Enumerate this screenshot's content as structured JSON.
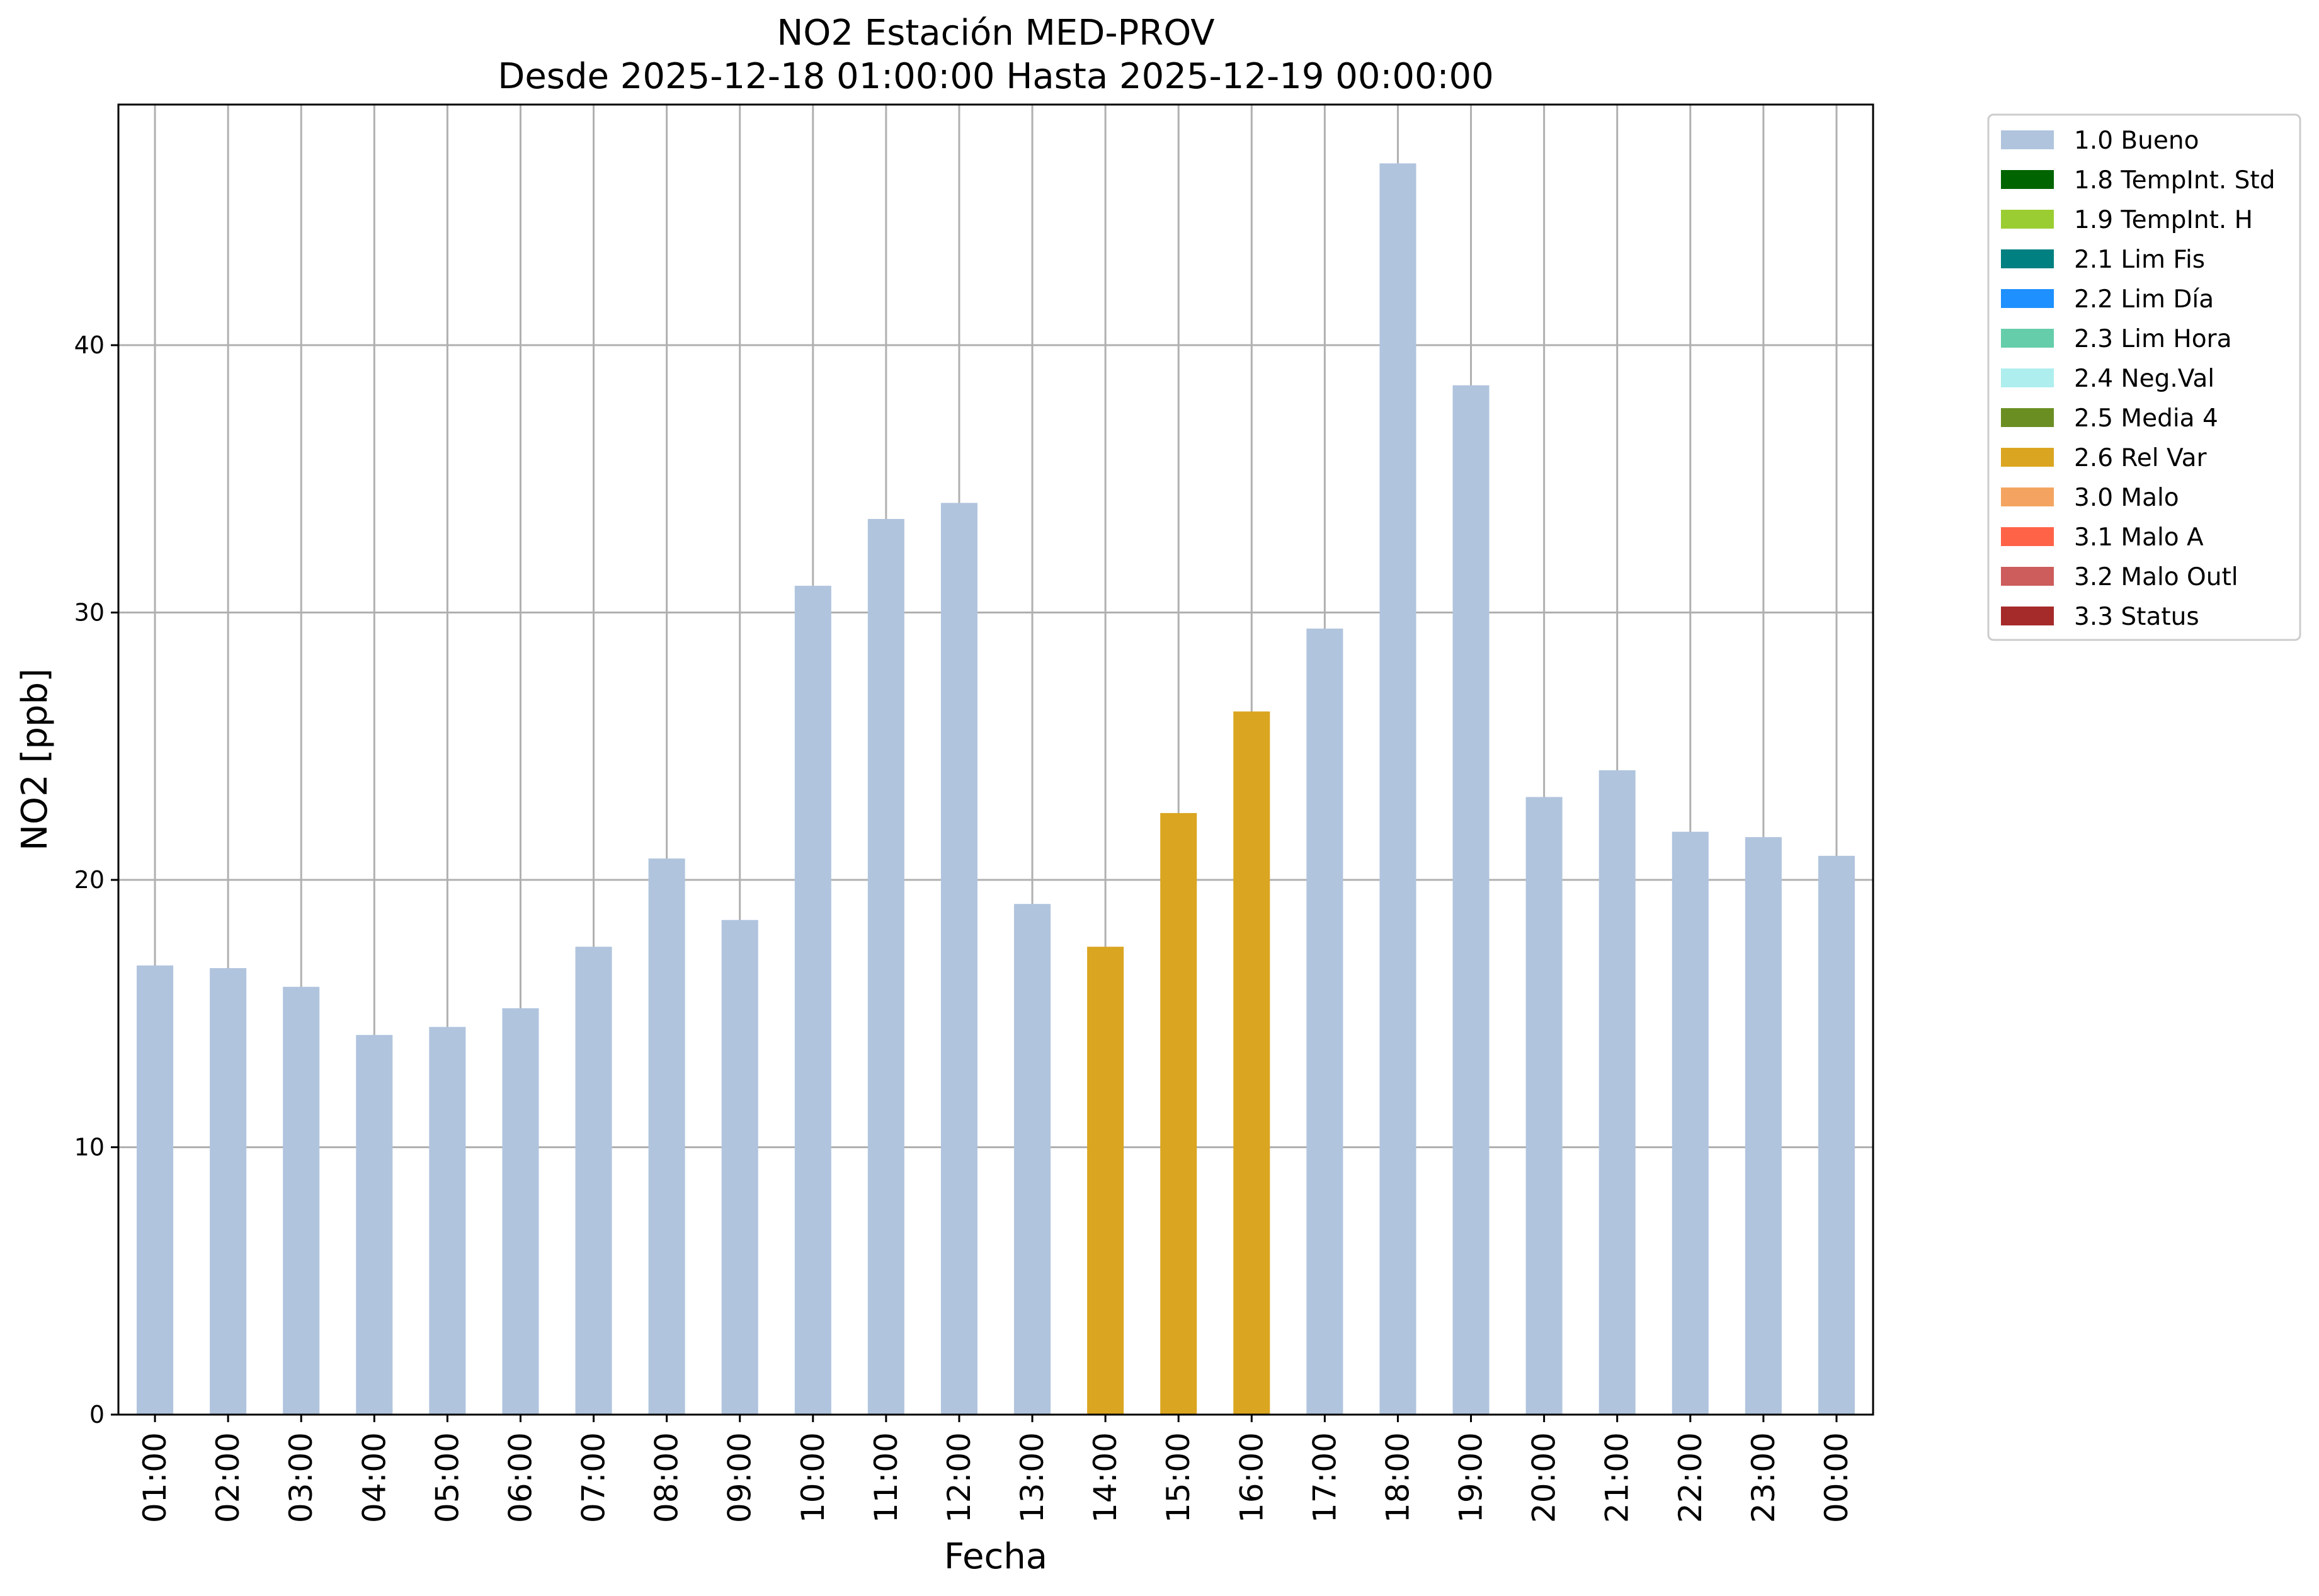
{
  "chart_data": {
    "type": "bar",
    "title": "NO2 Estación MED-PROV",
    "subtitle": "Desde 2025-12-18 01:00:00 Hasta 2025-12-19 00:00:00",
    "xlabel": "Fecha",
    "ylabel": "NO2 [ppb]",
    "ylim": [
      0,
      49
    ],
    "yticks": [
      0,
      10,
      20,
      30,
      40
    ],
    "grid": true,
    "legend_position": "outside top-right",
    "categories": [
      "01:00",
      "02:00",
      "03:00",
      "04:00",
      "05:00",
      "06:00",
      "07:00",
      "08:00",
      "09:00",
      "10:00",
      "11:00",
      "12:00",
      "13:00",
      "14:00",
      "15:00",
      "16:00",
      "17:00",
      "18:00",
      "19:00",
      "20:00",
      "21:00",
      "22:00",
      "23:00",
      "00:00"
    ],
    "values": [
      16.8,
      16.7,
      16.0,
      14.2,
      14.5,
      15.2,
      17.5,
      20.8,
      18.5,
      31.0,
      33.5,
      34.1,
      19.1,
      17.5,
      22.5,
      26.3,
      29.4,
      46.8,
      38.5,
      23.1,
      24.1,
      21.8,
      21.6,
      20.9
    ],
    "flags": [
      "1.0 Bueno",
      "1.0 Bueno",
      "1.0 Bueno",
      "1.0 Bueno",
      "1.0 Bueno",
      "1.0 Bueno",
      "1.0 Bueno",
      "1.0 Bueno",
      "1.0 Bueno",
      "1.0 Bueno",
      "1.0 Bueno",
      "1.0 Bueno",
      "1.0 Bueno",
      "2.6 Rel Var",
      "2.6 Rel Var",
      "2.6 Rel Var",
      "1.0 Bueno",
      "1.0 Bueno",
      "1.0 Bueno",
      "1.0 Bueno",
      "1.0 Bueno",
      "1.0 Bueno",
      "1.0 Bueno",
      "1.0 Bueno"
    ],
    "legend": [
      {
        "label": "1.0 Bueno",
        "color": "#b0c4de"
      },
      {
        "label": "1.8 TempInt. Std",
        "color": "#006400"
      },
      {
        "label": "1.9 TempInt. H",
        "color": "#9acd32"
      },
      {
        "label": "2.1 Lim Fis",
        "color": "#008080"
      },
      {
        "label": "2.2 Lim Día",
        "color": "#1e90ff"
      },
      {
        "label": "2.3 Lim Hora",
        "color": "#66cdaa"
      },
      {
        "label": "2.4 Neg.Val",
        "color": "#afeeee"
      },
      {
        "label": "2.5 Media 4",
        "color": "#6b8e23"
      },
      {
        "label": "2.6 Rel Var",
        "color": "#daa520"
      },
      {
        "label": "3.0 Malo",
        "color": "#f4a460"
      },
      {
        "label": "3.1 Malo A",
        "color": "#ff6347"
      },
      {
        "label": "3.2 Malo Outl",
        "color": "#cd5c5c"
      },
      {
        "label": "3.3 Status",
        "color": "#a52a2a"
      }
    ]
  }
}
